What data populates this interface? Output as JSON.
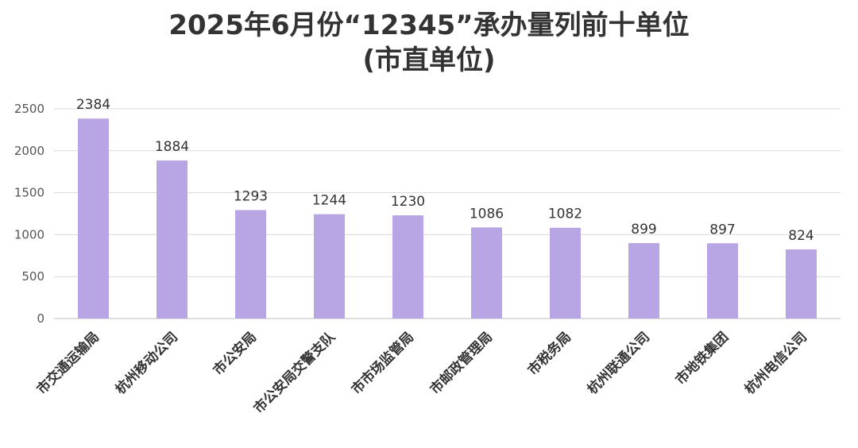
{
  "chart_data": {
    "type": "bar",
    "title": "2025年6月份“12345”承办量列前十单位",
    "subtitle": "(市直单位)",
    "categories": [
      "市交通运输局",
      "杭州移动公司",
      "市公安局",
      "市公安局交警支队",
      "市市场监管局",
      "市邮政管理局",
      "市税务局",
      "杭州联通公司",
      "市地铁集团",
      "杭州电信公司"
    ],
    "values": [
      2384,
      1884,
      1293,
      1244,
      1230,
      1086,
      1082,
      899,
      897,
      824
    ],
    "ylim": [
      0,
      2500
    ],
    "yticks": [
      0,
      500,
      1000,
      1500,
      2000,
      2500
    ],
    "grid": true,
    "bar_color": "#b8a5e3",
    "grid_color": "#d9d9d9"
  }
}
